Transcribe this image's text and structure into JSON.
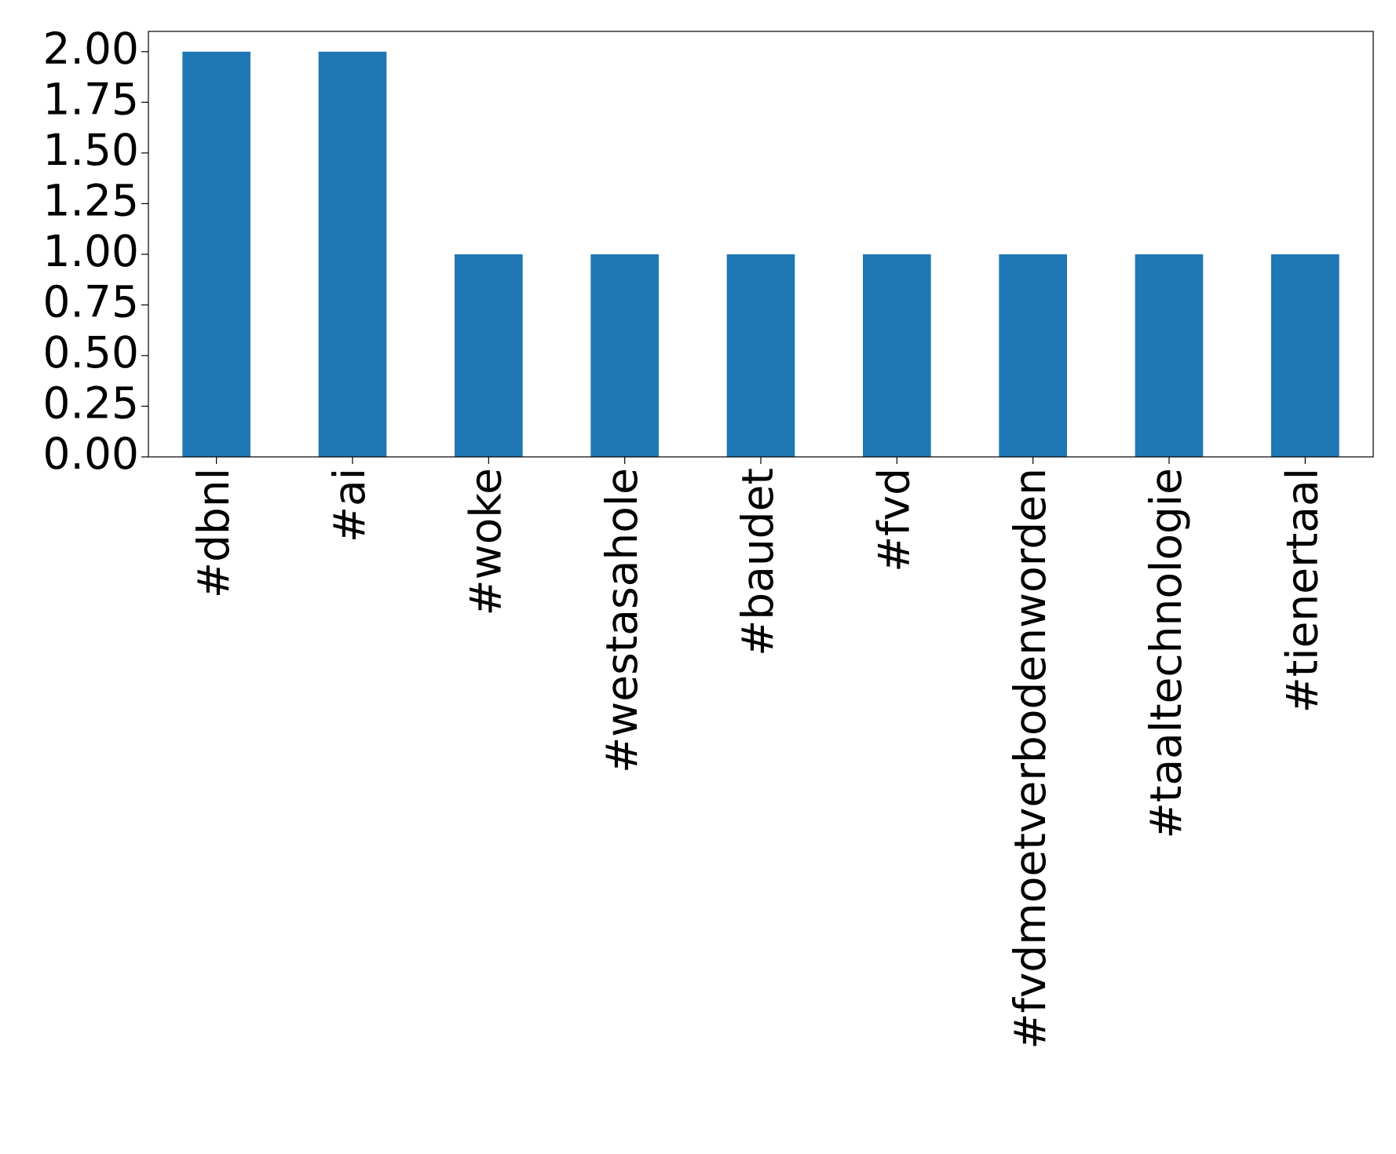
{
  "chart_data": {
    "type": "bar",
    "categories": [
      "#dbnl",
      "#ai",
      "#woke",
      "#westasahole",
      "#baudet",
      "#fvd",
      "#fvdmoetverbodenworden",
      "#taaltechnologie",
      "#tienertaal"
    ],
    "values": [
      2,
      2,
      1,
      1,
      1,
      1,
      1,
      1,
      1
    ],
    "color": "#1f77b4",
    "ylim": [
      0,
      2.1
    ],
    "yticks": [
      {
        "value": 0,
        "label": "0.00"
      },
      {
        "value": 0.25,
        "label": "0.25"
      },
      {
        "value": 0.5,
        "label": "0.50"
      },
      {
        "value": 0.75,
        "label": "0.75"
      },
      {
        "value": 1,
        "label": "1.00"
      },
      {
        "value": 1.25,
        "label": "1.25"
      },
      {
        "value": 1.5,
        "label": "1.50"
      },
      {
        "value": 1.75,
        "label": "1.75"
      },
      {
        "value": 2,
        "label": "2.00"
      }
    ],
    "grid": false
  }
}
